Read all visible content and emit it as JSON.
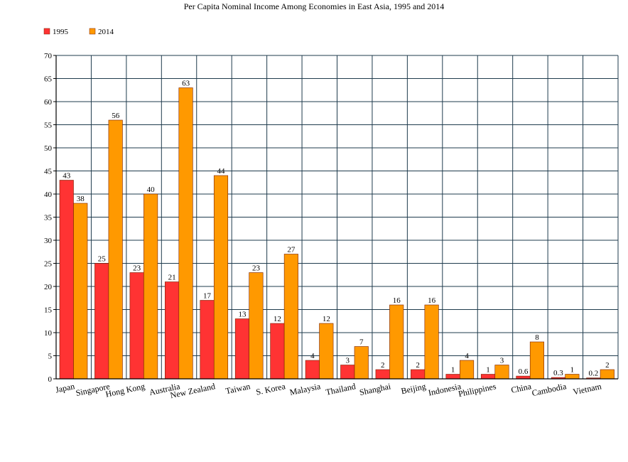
{
  "chart_data": {
    "type": "bar",
    "title": "Per Capita Nominal Income Among Economies in East Asia, 1995 and 2014",
    "xlabel": "",
    "ylabel": "",
    "ylim": [
      0,
      70
    ],
    "y_ticks": [
      "0",
      "5",
      "10",
      "15",
      "20",
      "25",
      "30",
      "35",
      "40",
      "45",
      "50",
      "55",
      "60",
      "65",
      "70"
    ],
    "grid": true,
    "legend_position": "top-left",
    "categories": [
      "Japan",
      "Singapore",
      "Hong Kong",
      "Australia",
      "New Zealand",
      "Taiwan",
      "S. Korea",
      "Malaysia",
      "Thailand",
      "Shanghai",
      "Beijing",
      "Indonesia",
      "Philippines",
      "China",
      "Cambodia",
      "Vietnam"
    ],
    "series": [
      {
        "name": "1995",
        "color": "#ff3333",
        "values": [
          43,
          25,
          23,
          21,
          17,
          13,
          12,
          4,
          3,
          2,
          2,
          1,
          1,
          0.6,
          0.3,
          0.2
        ],
        "labels": [
          "43",
          "25",
          "23",
          "21",
          "17",
          "13",
          "12",
          "4",
          "3",
          "2",
          "2",
          "1",
          "1",
          "0.6",
          "0.3",
          "0.2"
        ]
      },
      {
        "name": "2014",
        "color": "#ff9900",
        "values": [
          38,
          56,
          40,
          63,
          44,
          23,
          27,
          12,
          7,
          16,
          16,
          4,
          3,
          8,
          1,
          2
        ],
        "labels": [
          "38",
          "56",
          "40",
          "63",
          "44",
          "23",
          "27",
          "12",
          "7",
          "16",
          "16",
          "4",
          "3",
          "8",
          "1",
          "2"
        ]
      }
    ],
    "grid_color": "#1f3b4d"
  }
}
